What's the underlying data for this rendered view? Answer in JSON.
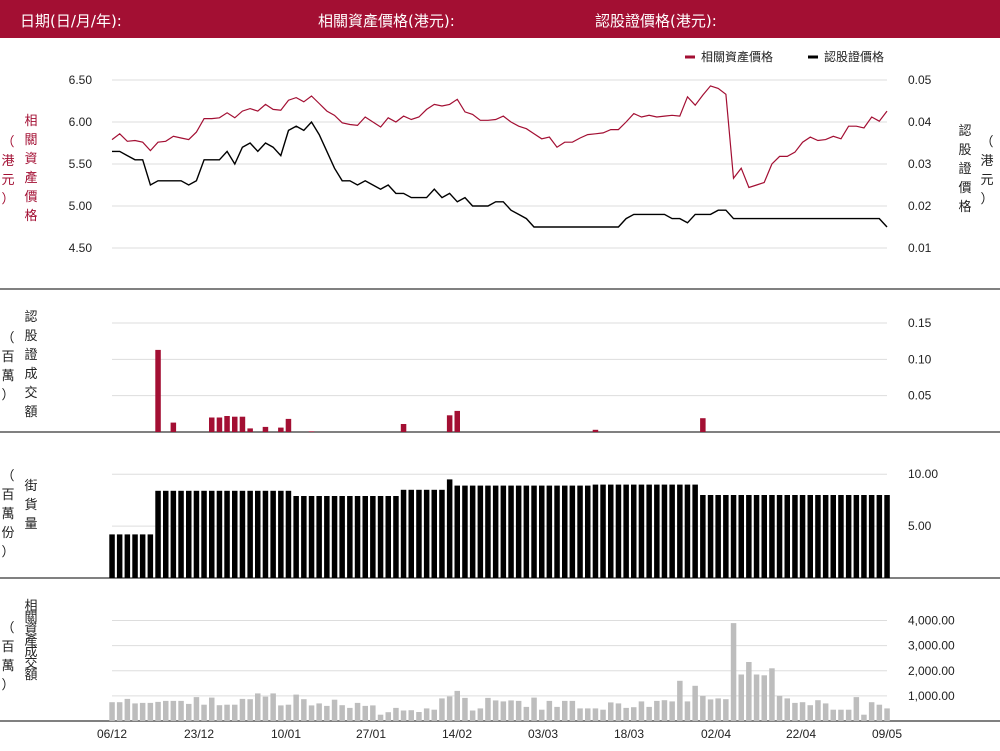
{
  "header": {
    "date_label": "日期(日/月/年):",
    "underlying_label": "相關資產價格(港元):",
    "warrant_label": "認股證價格(港元):"
  },
  "colors": {
    "header_bg": "#a30f33",
    "underlying": "#a30f33",
    "warrant": "#000000",
    "turnover_bar": "#a30f33",
    "outstanding_bar": "#000000",
    "underlying_turnover_bar": "#bdbdbd",
    "grid": "#dddddd"
  },
  "chart_data": {
    "x_labels": [
      "06/12",
      "23/12",
      "10/01",
      "27/01",
      "14/02",
      "03/03",
      "18/03",
      "02/04",
      "22/04",
      "09/05"
    ],
    "panels": [
      {
        "name": "price",
        "type": "line",
        "legend": [
          "相關資產價格",
          "認股證價格"
        ],
        "legend_position": "top-right",
        "left_axis_label": [
          "相",
          "關",
          "資",
          "產",
          "價",
          "格"
        ],
        "left_axis_unit": [
          "（",
          "港",
          "元",
          "）"
        ],
        "right_axis_label": [
          "認",
          "股",
          "證",
          "價",
          "格"
        ],
        "right_axis_unit": [
          "（",
          "港",
          "元",
          "）"
        ],
        "left_ticks": [
          "6.50",
          "6.00",
          "5.50",
          "5.00",
          "4.50"
        ],
        "left_tick_values": [
          6.5,
          6.0,
          5.5,
          5.0,
          4.5
        ],
        "right_ticks": [
          "0.05",
          "0.04",
          "0.03",
          "0.02",
          "0.01"
        ],
        "right_tick_values": [
          0.05,
          0.04,
          0.03,
          0.02,
          0.01
        ],
        "ylim_left": [
          4.0,
          6.5
        ],
        "ylim_right": [
          0.0,
          0.05
        ],
        "series": [
          {
            "name": "相關資產價格",
            "axis": "left",
            "values": [
              5.79,
              5.86,
              5.77,
              5.78,
              5.76,
              5.66,
              5.76,
              5.77,
              5.83,
              5.81,
              5.79,
              5.88,
              6.04,
              6.04,
              6.05,
              6.11,
              6.05,
              6.13,
              6.16,
              6.13,
              6.21,
              6.15,
              6.14,
              6.26,
              6.29,
              6.24,
              6.31,
              6.22,
              6.13,
              6.08,
              5.99,
              5.97,
              5.96,
              6.06,
              6.0,
              5.94,
              6.05,
              6.0,
              6.07,
              6.03,
              6.06,
              6.15,
              6.21,
              6.19,
              6.21,
              6.27,
              6.12,
              6.09,
              6.02,
              6.02,
              6.03,
              6.07,
              6.0,
              5.95,
              5.92,
              5.86,
              5.8,
              5.82,
              5.7,
              5.76,
              5.76,
              5.81,
              5.85,
              5.86,
              5.87,
              5.91,
              5.91,
              6.0,
              6.1,
              6.06,
              6.08,
              6.06,
              6.07,
              6.08,
              6.07,
              6.3,
              6.2,
              6.32,
              6.43,
              6.4,
              6.33,
              5.33,
              5.45,
              5.22,
              5.25,
              5.28,
              5.5,
              5.59,
              5.59,
              5.64,
              5.76,
              5.82,
              5.78,
              5.79,
              5.83,
              5.8,
              5.95,
              5.95,
              5.93,
              6.06,
              6.01,
              6.13
            ]
          },
          {
            "name": "認股證價格",
            "axis": "right",
            "values": [
              0.033,
              0.033,
              0.032,
              0.031,
              0.031,
              0.025,
              0.026,
              0.026,
              0.026,
              0.026,
              0.025,
              0.026,
              0.031,
              0.031,
              0.031,
              0.033,
              0.03,
              0.034,
              0.035,
              0.033,
              0.035,
              0.034,
              0.032,
              0.038,
              0.039,
              0.038,
              0.04,
              0.037,
              0.033,
              0.029,
              0.026,
              0.026,
              0.025,
              0.026,
              0.025,
              0.024,
              0.025,
              0.023,
              0.023,
              0.022,
              0.022,
              0.022,
              0.024,
              0.022,
              0.023,
              0.021,
              0.022,
              0.02,
              0.02,
              0.02,
              0.021,
              0.021,
              0.019,
              0.018,
              0.017,
              0.015,
              0.015,
              0.015,
              0.015,
              0.015,
              0.015,
              0.015,
              0.015,
              0.015,
              0.015,
              0.015,
              0.015,
              0.017,
              0.018,
              0.018,
              0.018,
              0.018,
              0.018,
              0.017,
              0.017,
              0.016,
              0.018,
              0.018,
              0.018,
              0.019,
              0.019,
              0.017,
              0.017,
              0.017,
              0.017,
              0.017,
              0.017,
              0.017,
              0.017,
              0.017,
              0.017,
              0.017,
              0.017,
              0.017,
              0.017,
              0.017,
              0.017,
              0.017,
              0.017,
              0.017,
              0.017,
              0.015
            ]
          }
        ]
      },
      {
        "name": "warrant_turnover",
        "type": "bar",
        "left_axis_label": [
          "認",
          "股",
          "證",
          "成",
          "交",
          "額"
        ],
        "left_axis_unit": [
          "（",
          "百",
          "萬",
          "）"
        ],
        "right_ticks": [
          "0.15",
          "0.10",
          "0.05"
        ],
        "right_tick_values": [
          0.15,
          0.1,
          0.05
        ],
        "ylim": [
          0.0,
          0.15
        ],
        "values": {
          "6": 0.113,
          "8": 0.013,
          "13": 0.02,
          "14": 0.02,
          "15": 0.022,
          "16": 0.021,
          "17": 0.021,
          "18": 0.005,
          "20": 0.007,
          "22": 0.006,
          "23": 0.018,
          "26": 0.001,
          "38": 0.011,
          "44": 0.023,
          "45": 0.029,
          "63": 0.003,
          "77": 0.019
        }
      },
      {
        "name": "outstanding",
        "type": "bar",
        "left_axis_label": [
          "街",
          "貨",
          "量"
        ],
        "left_axis_unit": [
          "（",
          "百",
          "萬",
          "份",
          "）"
        ],
        "right_ticks": [
          "10.00",
          "5.00"
        ],
        "right_tick_values": [
          10.0,
          5.0
        ],
        "ylim": [
          0.0,
          10.5
        ],
        "values": [
          4.2,
          4.2,
          4.2,
          4.2,
          4.2,
          4.2,
          8.4,
          8.4,
          8.4,
          8.4,
          8.4,
          8.4,
          8.4,
          8.4,
          8.4,
          8.4,
          8.4,
          8.4,
          8.4,
          8.4,
          8.4,
          8.4,
          8.4,
          8.4,
          7.9,
          7.9,
          7.9,
          7.9,
          7.9,
          7.9,
          7.9,
          7.9,
          7.9,
          7.9,
          7.9,
          7.9,
          7.9,
          7.9,
          8.5,
          8.5,
          8.5,
          8.5,
          8.5,
          8.5,
          9.5,
          8.9,
          8.9,
          8.9,
          8.9,
          8.9,
          8.9,
          8.9,
          8.9,
          8.9,
          8.9,
          8.9,
          8.9,
          8.9,
          8.9,
          8.9,
          8.9,
          8.9,
          8.9,
          9.0,
          9.0,
          9.0,
          9.0,
          9.0,
          9.0,
          9.0,
          9.0,
          9.0,
          9.0,
          9.0,
          9.0,
          9.0,
          9.0,
          8.0,
          8.0,
          8.0,
          8.0,
          8.0,
          8.0,
          8.0,
          8.0,
          8.0,
          8.0,
          8.0,
          8.0,
          8.0,
          8.0,
          8.0,
          8.0,
          8.0,
          8.0,
          8.0,
          8.0,
          8.0,
          8.0,
          8.0,
          8.0,
          8.0
        ]
      },
      {
        "name": "underlying_turnover",
        "type": "bar",
        "left_axis_label": [
          "相",
          "關",
          "資",
          "產",
          "成",
          "交",
          "額"
        ],
        "left_axis_unit": [
          "（",
          "百",
          "萬",
          "）"
        ],
        "right_ticks": [
          "4,000.00",
          "3,000.00",
          "2,000.00",
          "1,000.00"
        ],
        "right_tick_values": [
          4000,
          3000,
          2000,
          1000
        ],
        "ylim": [
          0,
          4500
        ],
        "values": [
          750,
          750,
          880,
          700,
          720,
          720,
          760,
          800,
          800,
          800,
          680,
          950,
          650,
          930,
          630,
          650,
          650,
          880,
          870,
          1100,
          970,
          1100,
          620,
          650,
          1050,
          870,
          620,
          700,
          600,
          850,
          630,
          520,
          720,
          600,
          620,
          250,
          350,
          520,
          420,
          430,
          360,
          500,
          450,
          900,
          980,
          1200,
          920,
          420,
          500,
          920,
          820,
          780,
          820,
          800,
          560,
          930,
          450,
          800,
          560,
          800,
          800,
          500,
          500,
          500,
          450,
          740,
          700,
          520,
          550,
          780,
          560,
          800,
          830,
          780,
          1600,
          780,
          1400,
          1000,
          860,
          900,
          870,
          3900,
          1850,
          2350,
          1850,
          1820,
          2100,
          1000,
          900,
          720,
          750,
          630,
          830,
          700,
          450,
          450,
          450,
          950,
          250,
          750,
          650,
          500
        ]
      }
    ]
  }
}
